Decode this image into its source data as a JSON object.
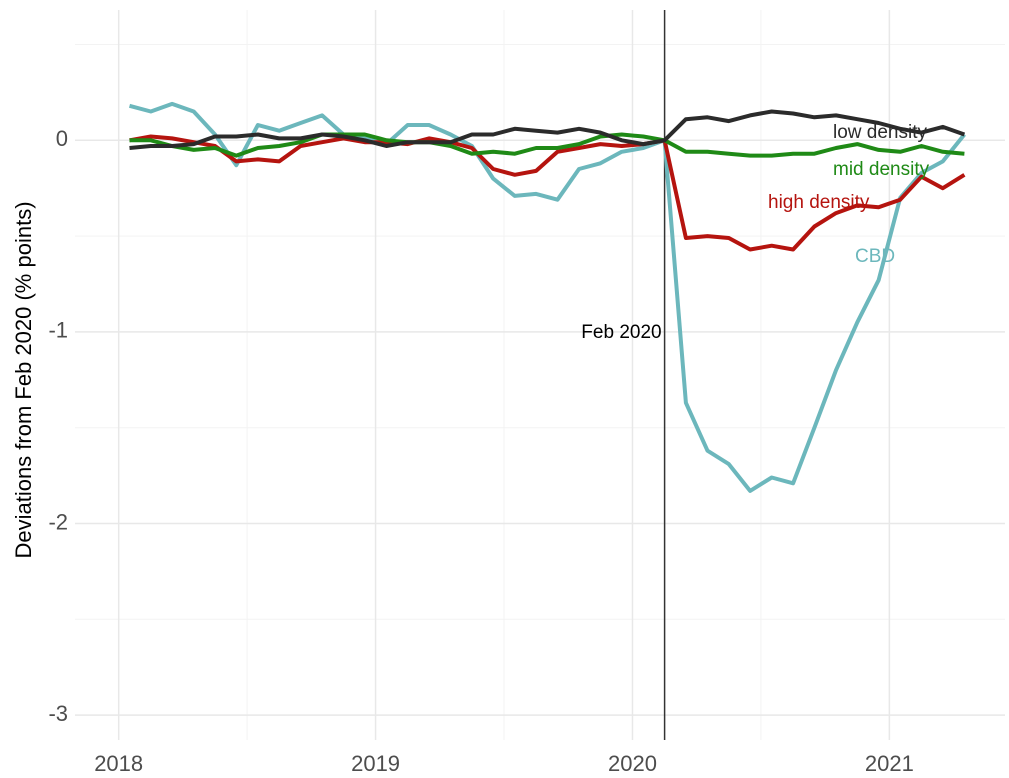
{
  "chart_data": {
    "type": "line",
    "y_label": "Deviations from Feb 2020 (% points)",
    "x": [
      2018.042,
      2018.125,
      2018.208,
      2018.292,
      2018.375,
      2018.458,
      2018.542,
      2018.625,
      2018.708,
      2018.792,
      2018.875,
      2018.958,
      2019.042,
      2019.125,
      2019.208,
      2019.292,
      2019.375,
      2019.458,
      2019.542,
      2019.625,
      2019.708,
      2019.792,
      2019.875,
      2019.958,
      2020.042,
      2020.125,
      2020.208,
      2020.292,
      2020.375,
      2020.458,
      2020.542,
      2020.625,
      2020.708,
      2020.792,
      2020.875,
      2020.958,
      2021.042,
      2021.125,
      2021.208,
      2021.292
    ],
    "series": [
      {
        "name": "CBD",
        "color": "#6cb7bc",
        "values": [
          0.18,
          0.15,
          0.19,
          0.15,
          0.03,
          -0.13,
          0.08,
          0.05,
          0.09,
          0.13,
          0.03,
          0.01,
          -0.02,
          0.08,
          0.08,
          0.03,
          -0.03,
          -0.2,
          -0.29,
          -0.28,
          -0.31,
          -0.15,
          -0.12,
          -0.06,
          -0.04,
          0,
          -1.37,
          -1.62,
          -1.69,
          -1.83,
          -1.76,
          -1.79,
          -1.5,
          -1.2,
          -0.95,
          -0.73,
          -0.3,
          -0.17,
          -0.11,
          0.03
        ]
      },
      {
        "name": "high density",
        "color": "#b5140f",
        "values": [
          0.0,
          0.02,
          0.01,
          -0.01,
          -0.03,
          -0.11,
          -0.1,
          -0.11,
          -0.03,
          -0.01,
          0.01,
          -0.01,
          -0.01,
          -0.02,
          0.01,
          -0.01,
          -0.04,
          -0.15,
          -0.18,
          -0.16,
          -0.06,
          -0.04,
          -0.02,
          -0.03,
          -0.02,
          0,
          -0.51,
          -0.5,
          -0.51,
          -0.57,
          -0.55,
          -0.57,
          -0.45,
          -0.38,
          -0.34,
          -0.35,
          -0.31,
          -0.19,
          -0.25,
          -0.18
        ]
      },
      {
        "name": "mid density",
        "color": "#1f8a16",
        "values": [
          0.0,
          0.0,
          -0.03,
          -0.05,
          -0.04,
          -0.08,
          -0.04,
          -0.03,
          -0.01,
          0.03,
          0.03,
          0.03,
          0.0,
          -0.01,
          -0.01,
          -0.03,
          -0.07,
          -0.06,
          -0.07,
          -0.04,
          -0.04,
          -0.02,
          0.02,
          0.03,
          0.02,
          0,
          -0.06,
          -0.06,
          -0.07,
          -0.08,
          -0.08,
          -0.07,
          -0.07,
          -0.04,
          -0.02,
          -0.05,
          -0.06,
          -0.03,
          -0.06,
          -0.07
        ]
      },
      {
        "name": "low density",
        "color": "#2b2b2b",
        "values": [
          -0.04,
          -0.03,
          -0.03,
          -0.02,
          0.02,
          0.02,
          0.03,
          0.01,
          0.01,
          0.03,
          0.02,
          0.0,
          -0.03,
          -0.01,
          -0.01,
          -0.01,
          0.03,
          0.03,
          0.06,
          0.05,
          0.04,
          0.06,
          0.04,
          0.0,
          -0.02,
          0,
          0.11,
          0.12,
          0.1,
          0.13,
          0.15,
          0.14,
          0.12,
          0.13,
          0.11,
          0.09,
          0.06,
          0.04,
          0.07,
          0.03
        ]
      }
    ],
    "vline": {
      "x": 2020.125,
      "label": "Feb 2020"
    },
    "xlim": [
      2017.83,
      2021.45
    ],
    "xticks": [
      2018,
      2019,
      2020,
      2021
    ],
    "ylim": [
      -3.13,
      0.68
    ],
    "yticks": [
      -3,
      -2,
      -1,
      0
    ],
    "grid": true
  }
}
